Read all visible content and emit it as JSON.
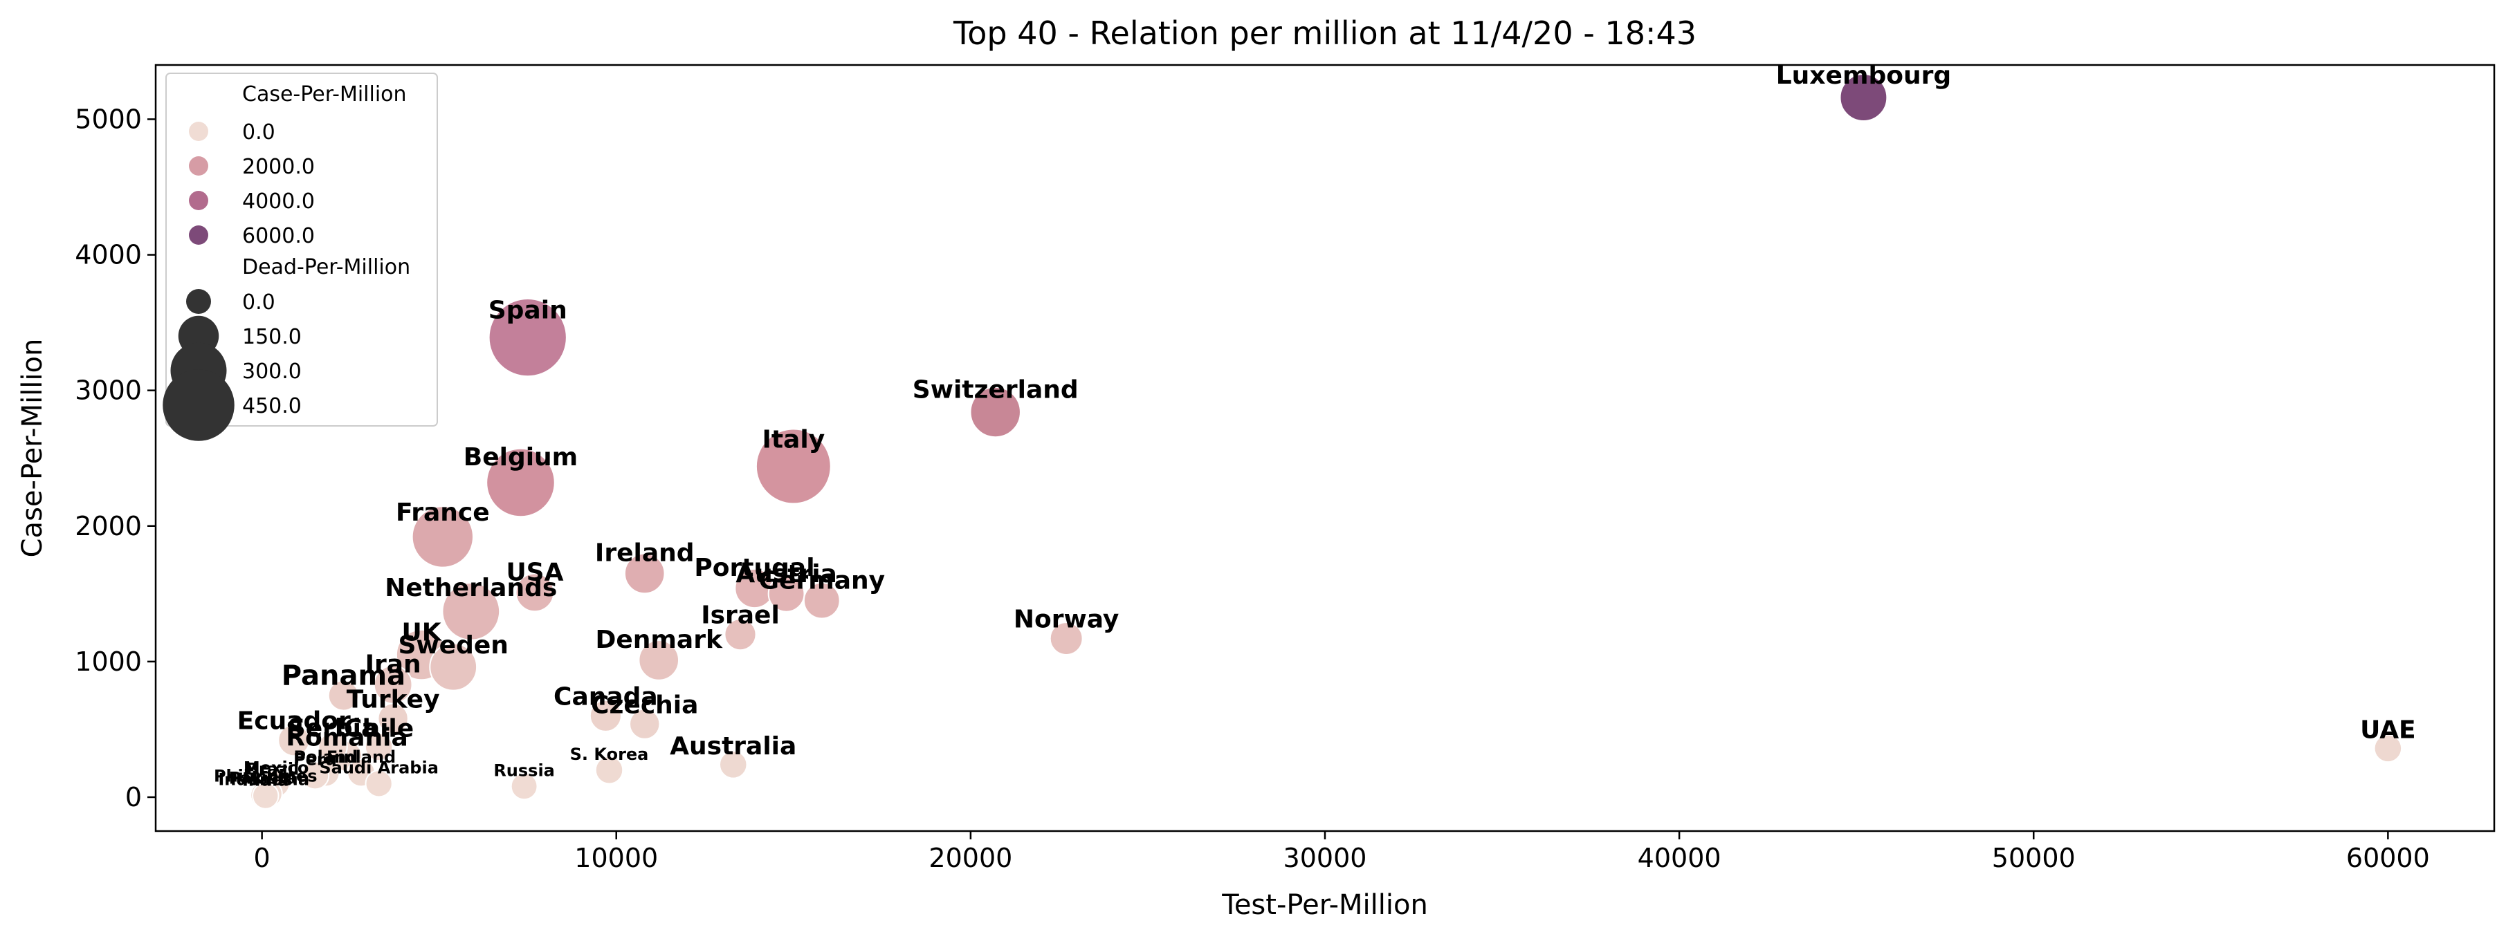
{
  "chart_data": {
    "type": "scatter",
    "title": "Top 40 - Relation per million at 11/4/20 - 18:43",
    "xlabel": "Test-Per-Million",
    "ylabel": "Case-Per-Million",
    "xlim": [
      -3000,
      63000
    ],
    "ylim": [
      -250,
      5400
    ],
    "xticks": [
      0,
      10000,
      20000,
      30000,
      40000,
      50000,
      60000
    ],
    "yticks": [
      0,
      1000,
      2000,
      3000,
      4000,
      5000
    ],
    "grid": false,
    "legend": {
      "placement": "top-left",
      "hue_title": "Case-Per-Million",
      "hue_entries": [
        {
          "label": "0.0",
          "color": "#f0dcd4"
        },
        {
          "label": "2000.0",
          "color": "#d69ca5"
        },
        {
          "label": "4000.0",
          "color": "#b26b8d"
        },
        {
          "label": "6000.0",
          "color": "#7d4a79"
        }
      ],
      "size_title": "Dead-Per-Million",
      "size_entries": [
        {
          "label": "0.0",
          "value": 0
        },
        {
          "label": "150.0",
          "value": 150
        },
        {
          "label": "300.0",
          "value": 300
        },
        {
          "label": "450.0",
          "value": 450
        }
      ]
    },
    "points": [
      {
        "label": "Luxembourg",
        "x": 45200,
        "y": 5160,
        "dead": 100,
        "color": "#7d4a79"
      },
      {
        "label": "Spain",
        "x": 7500,
        "y": 3390,
        "dead": 350,
        "color": "#c3809a"
      },
      {
        "label": "Switzerland",
        "x": 20700,
        "y": 2840,
        "dead": 120,
        "color": "#c88796"
      },
      {
        "label": "Italy",
        "x": 15000,
        "y": 2440,
        "dead": 320,
        "color": "#d4949f"
      },
      {
        "label": "Belgium",
        "x": 7300,
        "y": 2320,
        "dead": 260,
        "color": "#d2929f"
      },
      {
        "label": "France",
        "x": 5100,
        "y": 1920,
        "dead": 200,
        "color": "#dca9ad"
      },
      {
        "label": "Ireland",
        "x": 10800,
        "y": 1650,
        "dead": 60,
        "color": "#dfaeb1"
      },
      {
        "label": "USA",
        "x": 7700,
        "y": 1510,
        "dead": 50,
        "color": "#e2b6b6"
      },
      {
        "label": "Portugal",
        "x": 13900,
        "y": 1540,
        "dead": 55,
        "color": "#e2b4b5"
      },
      {
        "label": "Austria",
        "x": 14800,
        "y": 1500,
        "dead": 40,
        "color": "#e2b4b5"
      },
      {
        "label": "Germany",
        "x": 15800,
        "y": 1450,
        "dead": 40,
        "color": "#e2b6b6"
      },
      {
        "label": "Netherlands",
        "x": 5900,
        "y": 1370,
        "dead": 170,
        "color": "#e2b7b7"
      },
      {
        "label": "Israel",
        "x": 13500,
        "y": 1200,
        "dead": 20,
        "color": "#e6c0bd"
      },
      {
        "label": "Norway",
        "x": 22700,
        "y": 1170,
        "dead": 25,
        "color": "#e6c1be"
      },
      {
        "label": "UK",
        "x": 4500,
        "y": 1050,
        "dead": 120,
        "color": "#e6c2be"
      },
      {
        "label": "Denmark",
        "x": 11200,
        "y": 1010,
        "dead": 60,
        "color": "#e7c4c0"
      },
      {
        "label": "Sweden",
        "x": 5400,
        "y": 960,
        "dead": 100,
        "color": "#e7c5c1"
      },
      {
        "label": "Iran",
        "x": 3700,
        "y": 830,
        "dead": 50,
        "color": "#e9c9c4"
      },
      {
        "label": "Panama",
        "x": 2300,
        "y": 750,
        "dead": 15,
        "color": "#eacdc7"
      },
      {
        "label": "Turkey",
        "x": 3700,
        "y": 580,
        "dead": 15,
        "color": "#ecd2cb"
      },
      {
        "label": "Canada",
        "x": 9700,
        "y": 600,
        "dead": 20,
        "color": "#ecd2cb"
      },
      {
        "label": "Czechia",
        "x": 10800,
        "y": 540,
        "dead": 15,
        "color": "#ecd3cc"
      },
      {
        "label": "Ecuador",
        "x": 900,
        "y": 420,
        "dead": 20,
        "color": "#edd6ce"
      },
      {
        "label": "Serbia",
        "x": 2000,
        "y": 370,
        "dead": 10,
        "color": "#eed7cf"
      },
      {
        "label": "Chile",
        "x": 3300,
        "y": 370,
        "dead": 5,
        "color": "#eed7cf"
      },
      {
        "label": "Romania",
        "x": 2400,
        "y": 300,
        "dead": 15,
        "color": "#eed8d0"
      },
      {
        "label": "Australia",
        "x": 13300,
        "y": 240,
        "dead": 5,
        "color": "#eed9d1"
      },
      {
        "label": "UAE",
        "x": 60000,
        "y": 360,
        "dead": 5,
        "color": "#eed8d0"
      },
      {
        "label": "S. Korea",
        "x": 9800,
        "y": 200,
        "dead": 5,
        "color": "#efdad2"
      },
      {
        "label": "Poland",
        "x": 1800,
        "y": 180,
        "dead": 5,
        "color": "#efdad2"
      },
      {
        "label": "Finland",
        "x": 2800,
        "y": 180,
        "dead": 5,
        "color": "#efdad2"
      },
      {
        "label": "Peru",
        "x": 1500,
        "y": 160,
        "dead": 5,
        "color": "#efdad2"
      },
      {
        "label": "Mexico",
        "x": 400,
        "y": 100,
        "dead": 3,
        "color": "#f0dbd3"
      },
      {
        "label": "Saudi Arabia",
        "x": 3300,
        "y": 100,
        "dead": 2,
        "color": "#f0dbd3"
      },
      {
        "label": "Brazil",
        "x": 300,
        "y": 90,
        "dead": 5,
        "color": "#f0dbd3"
      },
      {
        "label": "Russia",
        "x": 7400,
        "y": 80,
        "dead": 1,
        "color": "#f0dbd3"
      },
      {
        "label": "Philippines",
        "x": 100,
        "y": 40,
        "dead": 2,
        "color": "#f0dcd4"
      },
      {
        "label": "Pakistan",
        "x": 200,
        "y": 25,
        "dead": 1,
        "color": "#f0dcd4"
      },
      {
        "label": "India",
        "x": 100,
        "y": 10,
        "dead": 0,
        "color": "#f0dcd4"
      },
      {
        "label": "Indonesia",
        "x": 50,
        "y": 15,
        "dead": 1,
        "color": "#f0dcd4"
      }
    ]
  }
}
